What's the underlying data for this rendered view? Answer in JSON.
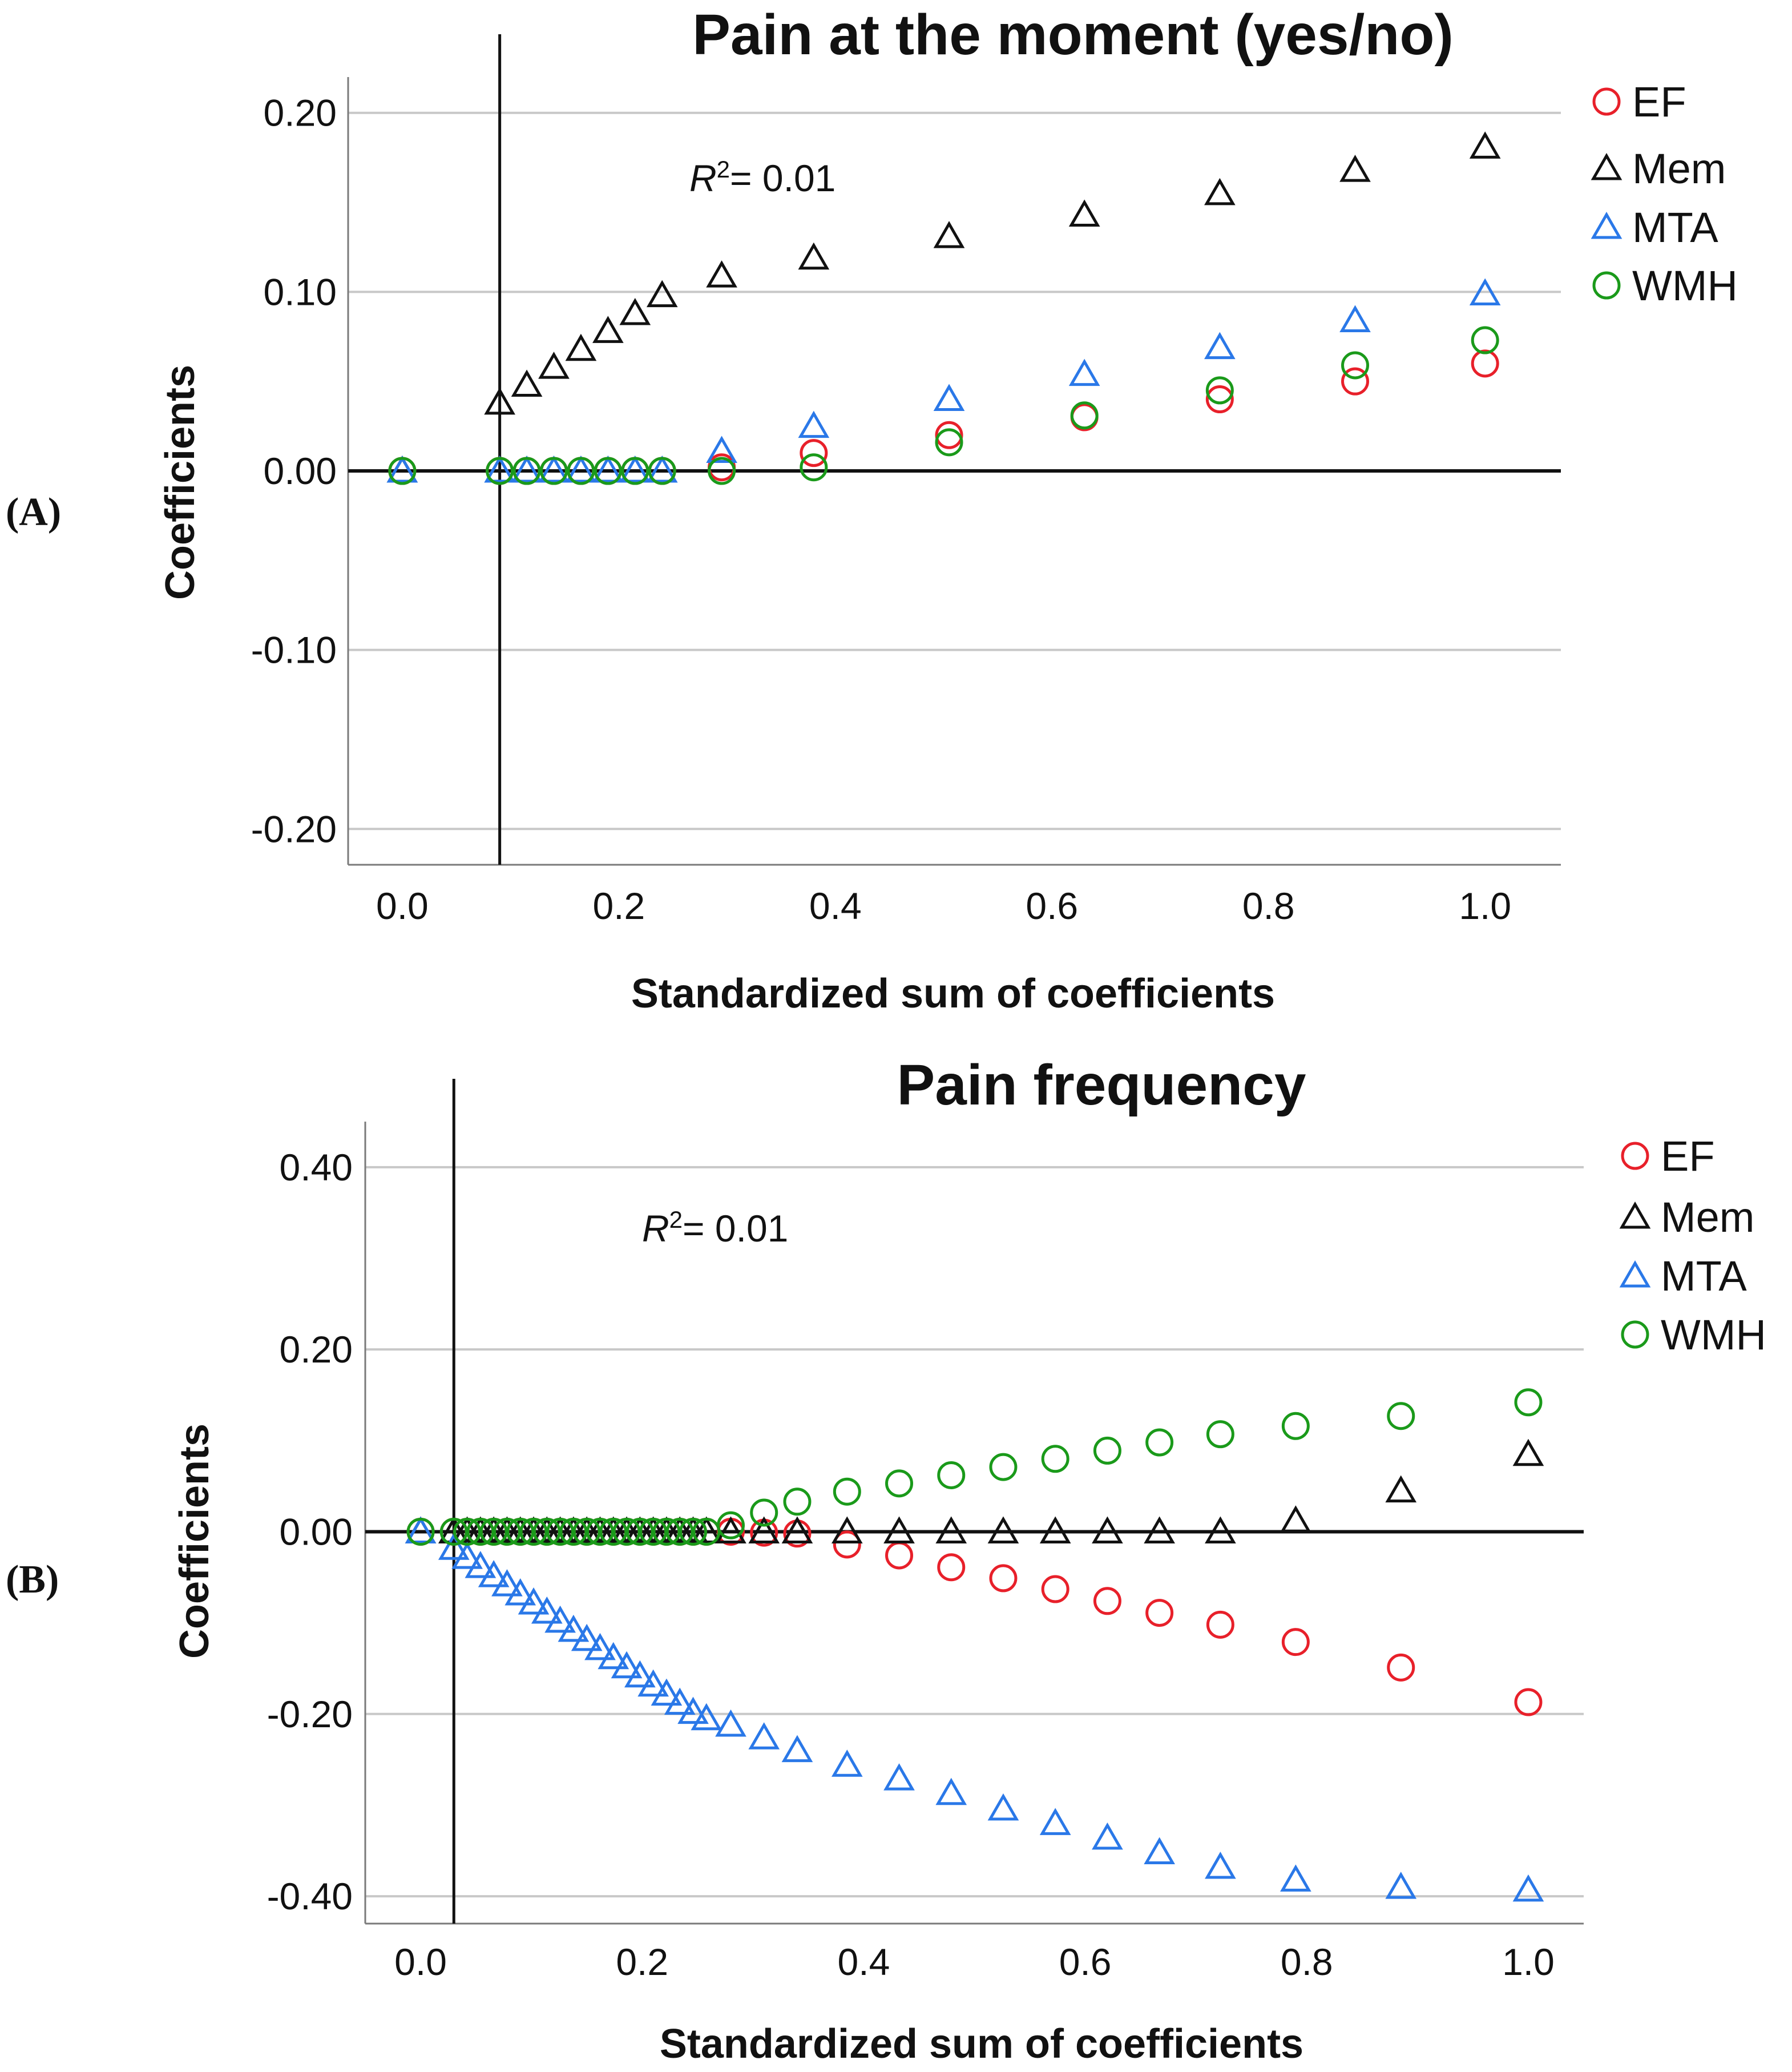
{
  "figure": {
    "panel_labels": [
      "(A)",
      "(B)"
    ]
  },
  "chart_data": [
    {
      "type": "scatter",
      "panel": "(A)",
      "title": "Pain at the moment (yes/no)",
      "xlabel": "Standardized sum of coefficients",
      "ylabel": "Coefficients",
      "xlim": [
        -0.05,
        1.07
      ],
      "ylim": [
        -0.22,
        0.22
      ],
      "x_ticks": [
        0.0,
        0.2,
        0.4,
        0.6,
        0.8,
        1.0
      ],
      "x_tick_labels": [
        "0.0",
        "0.2",
        "0.4",
        "0.6",
        "0.8",
        "1.0"
      ],
      "y_ticks": [
        0.2,
        0.1,
        0.0,
        -0.1,
        -0.2
      ],
      "y_tick_labels": [
        "0.20",
        "0.10",
        "0.00",
        "-0.10",
        "-0.20"
      ],
      "vertical_line_x": 0.09,
      "annotation": {
        "italic": "R",
        "sup": "2",
        "text": "= 0.01"
      },
      "legend_position": "top-right",
      "series": [
        {
          "name": "EF",
          "marker": "circle",
          "color": "#e8202a",
          "x": [
            0.0,
            0.09,
            0.115,
            0.14,
            0.165,
            0.19,
            0.215,
            0.24,
            0.295,
            0.38,
            0.505,
            0.63,
            0.755,
            0.88,
            1.0
          ],
          "y": [
            0.0,
            0.0,
            0.0,
            0.0,
            0.0,
            0.0,
            0.0,
            0.0,
            0.002,
            0.01,
            0.02,
            0.03,
            0.04,
            0.05,
            0.06
          ]
        },
        {
          "name": "Mem",
          "marker": "triangle",
          "color": "#111111",
          "x": [
            0.0,
            0.09,
            0.115,
            0.14,
            0.165,
            0.19,
            0.215,
            0.24,
            0.295,
            0.38,
            0.505,
            0.63,
            0.755,
            0.88,
            1.0
          ],
          "y": [
            0.0,
            0.038,
            0.048,
            0.058,
            0.068,
            0.078,
            0.088,
            0.098,
            0.109,
            0.119,
            0.131,
            0.143,
            0.155,
            0.168,
            0.181
          ]
        },
        {
          "name": "MTA",
          "marker": "triangle",
          "color": "#2a78e8",
          "x": [
            0.0,
            0.09,
            0.115,
            0.14,
            0.165,
            0.19,
            0.215,
            0.24,
            0.295,
            0.38,
            0.505,
            0.63,
            0.755,
            0.88,
            1.0
          ],
          "y": [
            0.0,
            0.0,
            0.0,
            0.0,
            0.0,
            0.0,
            0.0,
            0.0,
            0.011,
            0.025,
            0.04,
            0.054,
            0.069,
            0.084,
            0.099
          ]
        },
        {
          "name": "WMH",
          "marker": "circle",
          "color": "#1a9a1a",
          "x": [
            0.0,
            0.09,
            0.115,
            0.14,
            0.165,
            0.19,
            0.215,
            0.24,
            0.295,
            0.38,
            0.505,
            0.63,
            0.755,
            0.88,
            1.0
          ],
          "y": [
            0.0,
            0.0,
            0.0,
            0.0,
            0.0,
            0.0,
            0.0,
            0.0,
            0.0,
            0.002,
            0.016,
            0.031,
            0.045,
            0.059,
            0.073
          ]
        }
      ]
    },
    {
      "type": "scatter",
      "panel": "(B)",
      "title": "Pain frequency",
      "xlabel": "Standardized sum of coefficients",
      "ylabel": "Coefficients",
      "xlim": [
        -0.05,
        1.05
      ],
      "ylim": [
        -0.43,
        0.45
      ],
      "x_ticks": [
        0.0,
        0.2,
        0.4,
        0.6,
        0.8,
        1.0
      ],
      "x_tick_labels": [
        "0.0",
        "0.2",
        "0.4",
        "0.6",
        "0.8",
        "1.0"
      ],
      "y_ticks": [
        0.4,
        0.2,
        0.0,
        -0.2,
        -0.4
      ],
      "y_tick_labels": [
        "0.40",
        "0.20",
        "0.00",
        "-0.20",
        "-0.40"
      ],
      "vertical_line_x": 0.03,
      "annotation": {
        "italic": "R",
        "sup": "2",
        "text": "= 0.01"
      },
      "legend_position": "top-right",
      "series": [
        {
          "name": "EF",
          "marker": "circle",
          "color": "#e8202a",
          "x": [
            0.0,
            0.03,
            0.042,
            0.054,
            0.066,
            0.078,
            0.09,
            0.102,
            0.114,
            0.126,
            0.138,
            0.15,
            0.162,
            0.174,
            0.186,
            0.198,
            0.21,
            0.222,
            0.234,
            0.246,
            0.258,
            0.28,
            0.31,
            0.34,
            0.385,
            0.432,
            0.479,
            0.526,
            0.573,
            0.62,
            0.667,
            0.722,
            0.79,
            0.885,
            1.0
          ],
          "y": [
            0.0,
            0.0,
            0.0,
            0.0,
            0.0,
            0.0,
            0.0,
            0.0,
            0.0,
            0.0,
            0.0,
            0.0,
            0.0,
            0.0,
            0.0,
            0.0,
            0.0,
            0.0,
            0.0,
            0.0,
            0.0,
            0.0,
            -0.001,
            -0.002,
            -0.014,
            -0.026,
            -0.039,
            -0.051,
            -0.063,
            -0.076,
            -0.089,
            -0.102,
            -0.121,
            -0.149,
            -0.187
          ]
        },
        {
          "name": "Mem",
          "marker": "triangle",
          "color": "#111111",
          "x": [
            0.0,
            0.03,
            0.042,
            0.054,
            0.066,
            0.078,
            0.09,
            0.102,
            0.114,
            0.126,
            0.138,
            0.15,
            0.162,
            0.174,
            0.186,
            0.198,
            0.21,
            0.222,
            0.234,
            0.246,
            0.258,
            0.28,
            0.31,
            0.34,
            0.385,
            0.432,
            0.479,
            0.526,
            0.573,
            0.62,
            0.667,
            0.722,
            0.79,
            0.885,
            1.0
          ],
          "y": [
            0.0,
            0.0,
            0.0,
            0.0,
            0.0,
            0.0,
            0.0,
            0.0,
            0.0,
            0.0,
            0.0,
            0.0,
            0.0,
            0.0,
            0.0,
            0.0,
            0.0,
            0.0,
            0.0,
            0.0,
            0.0,
            0.0,
            0.0,
            0.0,
            0.0,
            0.0,
            0.0,
            0.0,
            0.0,
            0.0,
            0.0,
            0.0,
            0.012,
            0.045,
            0.085
          ]
        },
        {
          "name": "MTA",
          "marker": "triangle",
          "color": "#2a78e8",
          "x": [
            0.0,
            0.03,
            0.042,
            0.054,
            0.066,
            0.078,
            0.09,
            0.102,
            0.114,
            0.126,
            0.138,
            0.15,
            0.162,
            0.174,
            0.186,
            0.198,
            0.21,
            0.222,
            0.234,
            0.246,
            0.258,
            0.28,
            0.31,
            0.34,
            0.385,
            0.432,
            0.479,
            0.526,
            0.573,
            0.62,
            0.667,
            0.722,
            0.79,
            0.885,
            1.0
          ],
          "y": [
            0.0,
            -0.018,
            -0.028,
            -0.038,
            -0.048,
            -0.058,
            -0.068,
            -0.078,
            -0.088,
            -0.098,
            -0.108,
            -0.118,
            -0.128,
            -0.138,
            -0.148,
            -0.158,
            -0.168,
            -0.178,
            -0.188,
            -0.198,
            -0.205,
            -0.212,
            -0.226,
            -0.24,
            -0.256,
            -0.271,
            -0.287,
            -0.304,
            -0.32,
            -0.336,
            -0.352,
            -0.368,
            -0.382,
            -0.39,
            -0.393
          ]
        },
        {
          "name": "WMH",
          "marker": "circle",
          "color": "#1a9a1a",
          "x": [
            0.0,
            0.03,
            0.042,
            0.054,
            0.066,
            0.078,
            0.09,
            0.102,
            0.114,
            0.126,
            0.138,
            0.15,
            0.162,
            0.174,
            0.186,
            0.198,
            0.21,
            0.222,
            0.234,
            0.246,
            0.258,
            0.28,
            0.31,
            0.34,
            0.385,
            0.432,
            0.479,
            0.526,
            0.573,
            0.62,
            0.667,
            0.722,
            0.79,
            0.885,
            1.0
          ],
          "y": [
            0.0,
            0.0,
            0.0,
            0.0,
            0.0,
            0.0,
            0.0,
            0.0,
            0.0,
            0.0,
            0.0,
            0.0,
            0.0,
            0.0,
            0.0,
            0.0,
            0.0,
            0.0,
            0.0,
            0.0,
            0.0,
            0.007,
            0.021,
            0.033,
            0.044,
            0.053,
            0.062,
            0.071,
            0.08,
            0.089,
            0.098,
            0.107,
            0.116,
            0.127,
            0.142
          ]
        }
      ]
    }
  ]
}
